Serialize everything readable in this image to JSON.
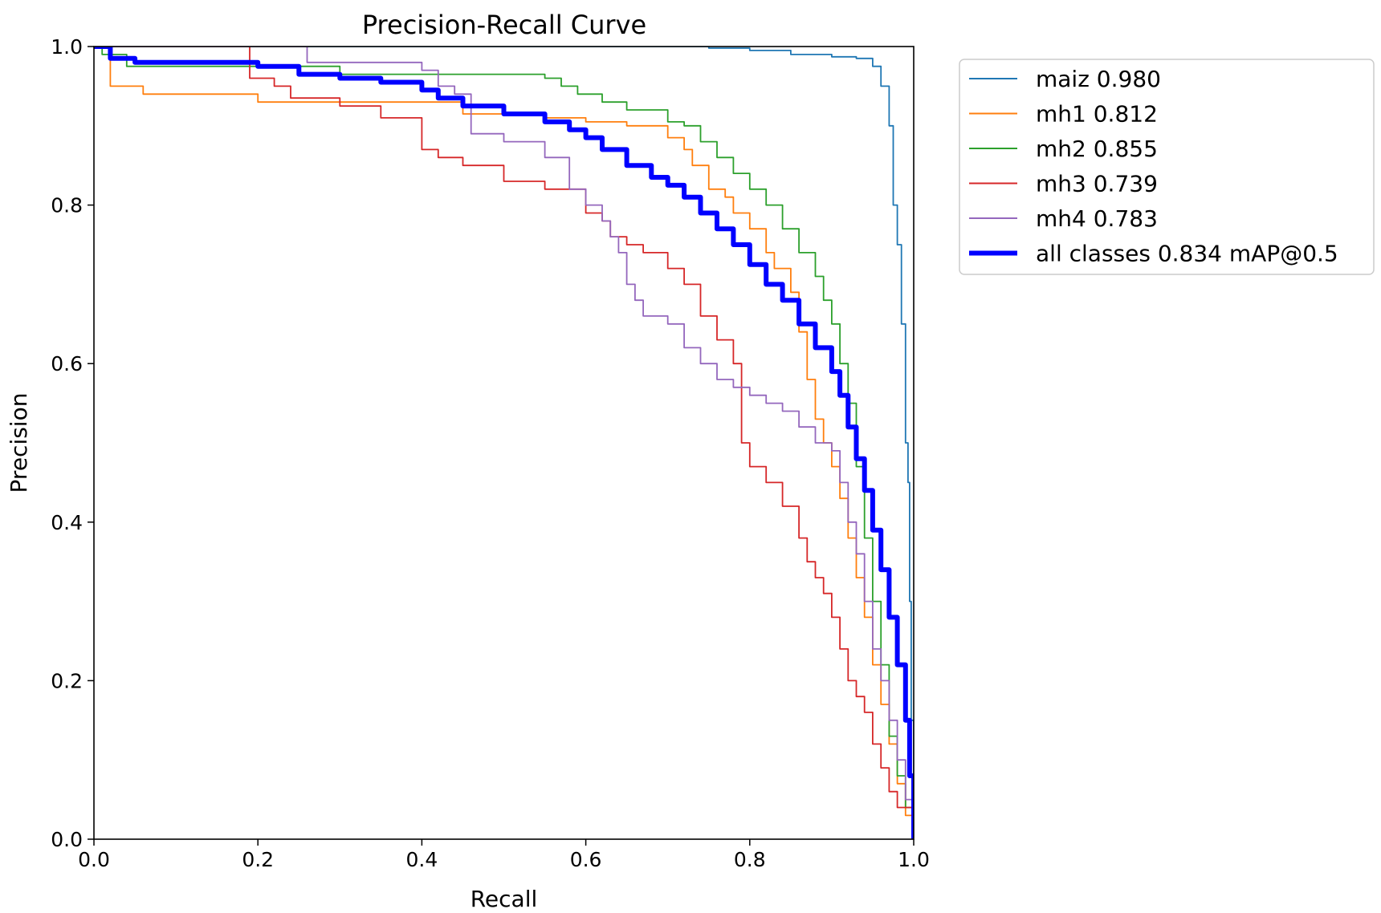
{
  "chart_data": {
    "type": "line",
    "title": "Precision-Recall Curve",
    "xlabel": "Recall",
    "ylabel": "Precision",
    "xlim": [
      0,
      1
    ],
    "ylim": [
      0,
      1
    ],
    "xticks": [
      "0.0",
      "0.2",
      "0.4",
      "0.6",
      "0.8",
      "1.0"
    ],
    "yticks": [
      "0.0",
      "0.2",
      "0.4",
      "0.6",
      "0.8",
      "1.0"
    ],
    "legend_position": "outside-top-right",
    "series": [
      {
        "name": "maiz",
        "ap": "0.980",
        "label": "maiz 0.980",
        "color": "#1f77b4",
        "width": "thin",
        "points": [
          [
            0,
            1
          ],
          [
            0.6,
            1
          ],
          [
            0.75,
            0.998
          ],
          [
            0.8,
            0.995
          ],
          [
            0.85,
            0.99
          ],
          [
            0.9,
            0.987
          ],
          [
            0.93,
            0.985
          ],
          [
            0.95,
            0.975
          ],
          [
            0.96,
            0.95
          ],
          [
            0.97,
            0.9
          ],
          [
            0.975,
            0.8
          ],
          [
            0.98,
            0.75
          ],
          [
            0.985,
            0.65
          ],
          [
            0.99,
            0.5
          ],
          [
            0.993,
            0.45
          ],
          [
            0.995,
            0.3
          ],
          [
            0.997,
            0.15
          ],
          [
            1.0,
            0
          ]
        ]
      },
      {
        "name": "mh1",
        "ap": "0.812",
        "label": "mh1 0.812",
        "color": "#ff7f0e",
        "width": "thin",
        "points": [
          [
            0,
            1
          ],
          [
            0.02,
            0.95
          ],
          [
            0.06,
            0.94
          ],
          [
            0.2,
            0.93
          ],
          [
            0.4,
            0.93
          ],
          [
            0.45,
            0.915
          ],
          [
            0.55,
            0.91
          ],
          [
            0.6,
            0.905
          ],
          [
            0.65,
            0.9
          ],
          [
            0.7,
            0.885
          ],
          [
            0.72,
            0.87
          ],
          [
            0.73,
            0.85
          ],
          [
            0.75,
            0.82
          ],
          [
            0.77,
            0.81
          ],
          [
            0.78,
            0.79
          ],
          [
            0.8,
            0.77
          ],
          [
            0.82,
            0.74
          ],
          [
            0.83,
            0.72
          ],
          [
            0.85,
            0.69
          ],
          [
            0.86,
            0.64
          ],
          [
            0.87,
            0.58
          ],
          [
            0.88,
            0.53
          ],
          [
            0.89,
            0.5
          ],
          [
            0.9,
            0.47
          ],
          [
            0.91,
            0.43
          ],
          [
            0.92,
            0.38
          ],
          [
            0.93,
            0.33
          ],
          [
            0.94,
            0.28
          ],
          [
            0.95,
            0.22
          ],
          [
            0.96,
            0.17
          ],
          [
            0.97,
            0.12
          ],
          [
            0.98,
            0.07
          ],
          [
            0.99,
            0.03
          ],
          [
            1.0,
            0
          ]
        ]
      },
      {
        "name": "mh2",
        "ap": "0.855",
        "label": "mh2 0.855",
        "color": "#2ca02c",
        "width": "thin",
        "points": [
          [
            0,
            1
          ],
          [
            0.01,
            0.99
          ],
          [
            0.04,
            0.975
          ],
          [
            0.2,
            0.975
          ],
          [
            0.3,
            0.965
          ],
          [
            0.4,
            0.965
          ],
          [
            0.55,
            0.96
          ],
          [
            0.57,
            0.95
          ],
          [
            0.59,
            0.94
          ],
          [
            0.62,
            0.93
          ],
          [
            0.65,
            0.92
          ],
          [
            0.7,
            0.905
          ],
          [
            0.72,
            0.9
          ],
          [
            0.74,
            0.88
          ],
          [
            0.76,
            0.86
          ],
          [
            0.78,
            0.84
          ],
          [
            0.8,
            0.82
          ],
          [
            0.82,
            0.8
          ],
          [
            0.84,
            0.77
          ],
          [
            0.86,
            0.74
          ],
          [
            0.88,
            0.71
          ],
          [
            0.89,
            0.68
          ],
          [
            0.9,
            0.65
          ],
          [
            0.91,
            0.6
          ],
          [
            0.92,
            0.55
          ],
          [
            0.93,
            0.47
          ],
          [
            0.94,
            0.38
          ],
          [
            0.95,
            0.3
          ],
          [
            0.96,
            0.22
          ],
          [
            0.97,
            0.13
          ],
          [
            0.98,
            0.08
          ],
          [
            0.99,
            0.04
          ],
          [
            1.0,
            0
          ]
        ]
      },
      {
        "name": "mh3",
        "ap": "0.739",
        "label": "mh3 0.739",
        "color": "#d62728",
        "width": "thin",
        "points": [
          [
            0,
            1
          ],
          [
            0.19,
            0.96
          ],
          [
            0.22,
            0.95
          ],
          [
            0.24,
            0.935
          ],
          [
            0.3,
            0.925
          ],
          [
            0.35,
            0.91
          ],
          [
            0.4,
            0.87
          ],
          [
            0.42,
            0.86
          ],
          [
            0.45,
            0.85
          ],
          [
            0.5,
            0.83
          ],
          [
            0.55,
            0.82
          ],
          [
            0.6,
            0.79
          ],
          [
            0.62,
            0.78
          ],
          [
            0.63,
            0.76
          ],
          [
            0.65,
            0.75
          ],
          [
            0.67,
            0.74
          ],
          [
            0.7,
            0.72
          ],
          [
            0.72,
            0.7
          ],
          [
            0.74,
            0.66
          ],
          [
            0.76,
            0.63
          ],
          [
            0.78,
            0.6
          ],
          [
            0.79,
            0.5
          ],
          [
            0.8,
            0.47
          ],
          [
            0.82,
            0.45
          ],
          [
            0.84,
            0.42
          ],
          [
            0.86,
            0.38
          ],
          [
            0.87,
            0.35
          ],
          [
            0.88,
            0.33
          ],
          [
            0.89,
            0.31
          ],
          [
            0.9,
            0.28
          ],
          [
            0.91,
            0.24
          ],
          [
            0.92,
            0.2
          ],
          [
            0.93,
            0.18
          ],
          [
            0.94,
            0.16
          ],
          [
            0.95,
            0.12
          ],
          [
            0.96,
            0.09
          ],
          [
            0.97,
            0.06
          ],
          [
            0.98,
            0.04
          ],
          [
            1.0,
            0
          ]
        ]
      },
      {
        "name": "mh4",
        "ap": "0.783",
        "label": "mh4 0.783",
        "color": "#9467bd",
        "width": "thin",
        "points": [
          [
            0,
            1
          ],
          [
            0.25,
            1
          ],
          [
            0.26,
            0.98
          ],
          [
            0.4,
            0.97
          ],
          [
            0.42,
            0.95
          ],
          [
            0.44,
            0.94
          ],
          [
            0.46,
            0.89
          ],
          [
            0.5,
            0.88
          ],
          [
            0.55,
            0.86
          ],
          [
            0.58,
            0.82
          ],
          [
            0.6,
            0.8
          ],
          [
            0.62,
            0.78
          ],
          [
            0.63,
            0.76
          ],
          [
            0.64,
            0.74
          ],
          [
            0.65,
            0.7
          ],
          [
            0.66,
            0.68
          ],
          [
            0.67,
            0.66
          ],
          [
            0.7,
            0.65
          ],
          [
            0.72,
            0.62
          ],
          [
            0.74,
            0.6
          ],
          [
            0.76,
            0.58
          ],
          [
            0.78,
            0.57
          ],
          [
            0.8,
            0.56
          ],
          [
            0.82,
            0.55
          ],
          [
            0.84,
            0.54
          ],
          [
            0.86,
            0.52
          ],
          [
            0.88,
            0.5
          ],
          [
            0.9,
            0.49
          ],
          [
            0.91,
            0.45
          ],
          [
            0.92,
            0.4
          ],
          [
            0.93,
            0.36
          ],
          [
            0.94,
            0.3
          ],
          [
            0.95,
            0.24
          ],
          [
            0.96,
            0.2
          ],
          [
            0.97,
            0.15
          ],
          [
            0.98,
            0.1
          ],
          [
            0.99,
            0.05
          ],
          [
            1.0,
            0
          ]
        ]
      },
      {
        "name": "all classes",
        "ap": "0.834",
        "label": "all classes 0.834 mAP@0.5",
        "color": "#0000ff",
        "width": "thick",
        "points": [
          [
            0,
            1
          ],
          [
            0.02,
            0.985
          ],
          [
            0.05,
            0.98
          ],
          [
            0.1,
            0.98
          ],
          [
            0.15,
            0.98
          ],
          [
            0.2,
            0.975
          ],
          [
            0.25,
            0.965
          ],
          [
            0.3,
            0.96
          ],
          [
            0.35,
            0.955
          ],
          [
            0.4,
            0.945
          ],
          [
            0.42,
            0.935
          ],
          [
            0.45,
            0.925
          ],
          [
            0.5,
            0.915
          ],
          [
            0.55,
            0.905
          ],
          [
            0.58,
            0.895
          ],
          [
            0.6,
            0.885
          ],
          [
            0.62,
            0.87
          ],
          [
            0.65,
            0.85
          ],
          [
            0.68,
            0.835
          ],
          [
            0.7,
            0.825
          ],
          [
            0.72,
            0.81
          ],
          [
            0.74,
            0.79
          ],
          [
            0.76,
            0.77
          ],
          [
            0.78,
            0.75
          ],
          [
            0.8,
            0.725
          ],
          [
            0.82,
            0.7
          ],
          [
            0.84,
            0.68
          ],
          [
            0.86,
            0.65
          ],
          [
            0.88,
            0.62
          ],
          [
            0.9,
            0.59
          ],
          [
            0.91,
            0.56
          ],
          [
            0.92,
            0.52
          ],
          [
            0.93,
            0.48
          ],
          [
            0.94,
            0.44
          ],
          [
            0.95,
            0.39
          ],
          [
            0.96,
            0.34
          ],
          [
            0.97,
            0.28
          ],
          [
            0.98,
            0.22
          ],
          [
            0.99,
            0.15
          ],
          [
            0.995,
            0.08
          ],
          [
            1.0,
            0
          ]
        ]
      }
    ]
  }
}
